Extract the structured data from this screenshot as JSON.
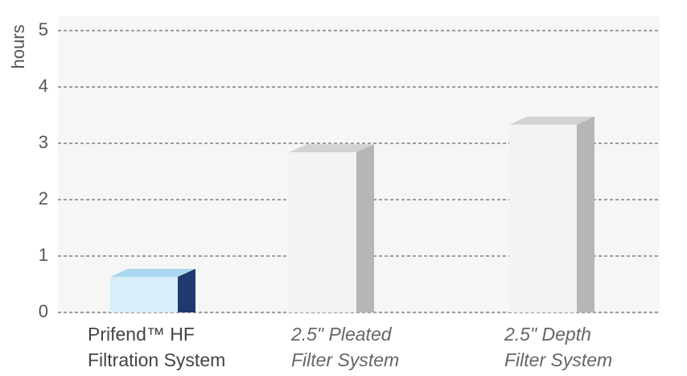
{
  "chart_data": {
    "type": "bar3d",
    "ylabel": "hours",
    "categories": [
      [
        "Prifend™ HF",
        "Filtration System"
      ],
      [
        "2.5\" Pleated",
        "Filter System"
      ],
      [
        "2.5\" Depth",
        "Filter System"
      ]
    ],
    "values": [
      0.63,
      2.84,
      3.33
    ],
    "colors": [
      {
        "front": "#d8eef9",
        "top": "#aad8f1",
        "side": "#1f3a6e"
      },
      {
        "front": "#f2f3f3",
        "top": "#d2d2d2",
        "side": "#b6b6b6"
      },
      {
        "front": "#f2f3f3",
        "top": "#d2d2d2",
        "side": "#b6b6b6"
      }
    ],
    "ylim": [
      0,
      5
    ],
    "yticks": [
      0,
      1,
      2,
      3,
      4,
      5
    ],
    "grid": true
  }
}
